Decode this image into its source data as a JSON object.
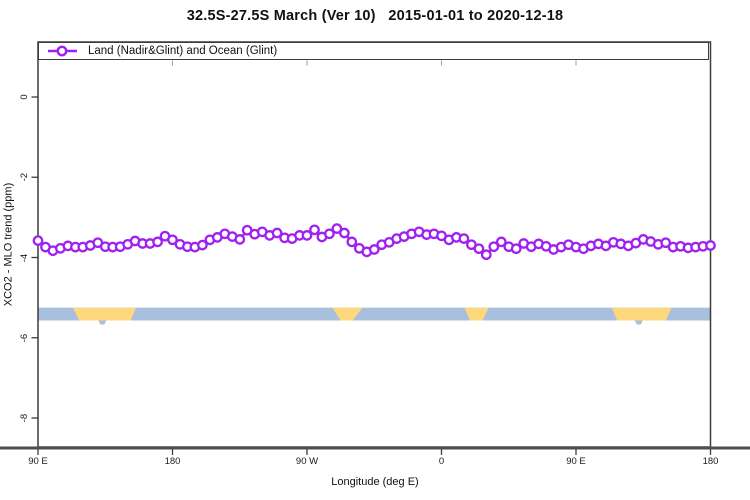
{
  "title": "32.5S-27.5S March (Ver 10)   2015-01-01 to 2020-12-18",
  "legend": {
    "label": "Land (Nadir&Glint) and Ocean (Glint)",
    "marker": "open-circle-on-line",
    "marker_color": "#A020F0"
  },
  "chart_data": {
    "type": "line",
    "title": "32.5S-27.5S March (Ver 10)   2015-01-01 to 2020-12-18",
    "xlabel": "Longitude (deg E)",
    "ylabel": "XCO2 - MLO trend (ppm)",
    "series_name": "Land (Nadir&Glint) and Ocean (Glint)",
    "line_color": "#A020F0",
    "marker": "open-circle",
    "grid": false,
    "legend_position": "top-left-strip",
    "x_axis_wraps_longitude": "90E eastward to 180 (540)",
    "xlim_deg": [
      90,
      540
    ],
    "ylim": [
      -8.7,
      1.35
    ],
    "x_ticks": [
      {
        "deg": 90,
        "label": "90 E"
      },
      {
        "deg": 180,
        "label": "180"
      },
      {
        "deg": 270,
        "label": "90 W"
      },
      {
        "deg": 360,
        "label": "0"
      },
      {
        "deg": 450,
        "label": "90 E"
      },
      {
        "deg": 540,
        "label": "180"
      }
    ],
    "y_ticks": [
      {
        "value": 0,
        "label": "0"
      },
      {
        "value": -2,
        "label": "-2"
      },
      {
        "value": -4,
        "label": "-4"
      },
      {
        "value": -6,
        "label": "-6"
      },
      {
        "value": -8,
        "label": "-8"
      }
    ],
    "x_deg": [
      90,
      95,
      100,
      105,
      110,
      115,
      120,
      125,
      130,
      135,
      140,
      145,
      150,
      155,
      160,
      165,
      170,
      175,
      180,
      185,
      190,
      195,
      200,
      205,
      210,
      215,
      220,
      225,
      230,
      235,
      240,
      245,
      250,
      255,
      260,
      265,
      270,
      275,
      280,
      285,
      290,
      295,
      300,
      305,
      310,
      315,
      320,
      325,
      330,
      335,
      340,
      345,
      350,
      355,
      360,
      365,
      370,
      375,
      380,
      385,
      390,
      395,
      400,
      405,
      410,
      415,
      420,
      425,
      430,
      435,
      440,
      445,
      450,
      455,
      460,
      465,
      470,
      475,
      480,
      485,
      490,
      495,
      500,
      505,
      510,
      515,
      520,
      525,
      530,
      535,
      540
    ],
    "values": [
      -3.58,
      -3.74,
      -3.83,
      -3.77,
      -3.71,
      -3.74,
      -3.74,
      -3.7,
      -3.63,
      -3.73,
      -3.74,
      -3.73,
      -3.67,
      -3.59,
      -3.65,
      -3.65,
      -3.61,
      -3.47,
      -3.56,
      -3.67,
      -3.73,
      -3.74,
      -3.69,
      -3.56,
      -3.5,
      -3.41,
      -3.48,
      -3.55,
      -3.32,
      -3.42,
      -3.36,
      -3.45,
      -3.39,
      -3.51,
      -3.53,
      -3.45,
      -3.45,
      -3.31,
      -3.49,
      -3.41,
      -3.28,
      -3.39,
      -3.61,
      -3.77,
      -3.86,
      -3.8,
      -3.68,
      -3.62,
      -3.53,
      -3.48,
      -3.41,
      -3.36,
      -3.43,
      -3.41,
      -3.46,
      -3.56,
      -3.5,
      -3.53,
      -3.68,
      -3.78,
      -3.93,
      -3.73,
      -3.61,
      -3.73,
      -3.78,
      -3.65,
      -3.73,
      -3.66,
      -3.72,
      -3.8,
      -3.74,
      -3.68,
      -3.74,
      -3.78,
      -3.71,
      -3.66,
      -3.71,
      -3.62,
      -3.66,
      -3.71,
      -3.64,
      -3.55,
      -3.6,
      -3.67,
      -3.63,
      -3.74,
      -3.72,
      -3.76,
      -3.74,
      -3.72,
      -3.7
    ],
    "land_ocean_band": {
      "description": "horizontal strip marking ocean (blue) vs land (yellow) along latitude band",
      "ocean_color": "#a8c0dd",
      "land_color": "#fdd87d",
      "value_top": -5.25,
      "value_bottom": -5.57,
      "land_patches_deg": [
        {
          "top": [
            113.5,
            155.5
          ],
          "bottom": [
            117.5,
            152.0
          ]
        },
        {
          "top": [
            287.0,
            307.0
          ],
          "bottom": [
            292.5,
            300.5
          ]
        },
        {
          "top": [
            375.5,
            391.5
          ],
          "bottom": [
            379.0,
            387.5
          ]
        },
        {
          "top": [
            474.0,
            514.0
          ],
          "bottom": [
            477.5,
            510.0
          ]
        }
      ],
      "ocean_tabs_deg": [
        133,
        492
      ]
    }
  }
}
